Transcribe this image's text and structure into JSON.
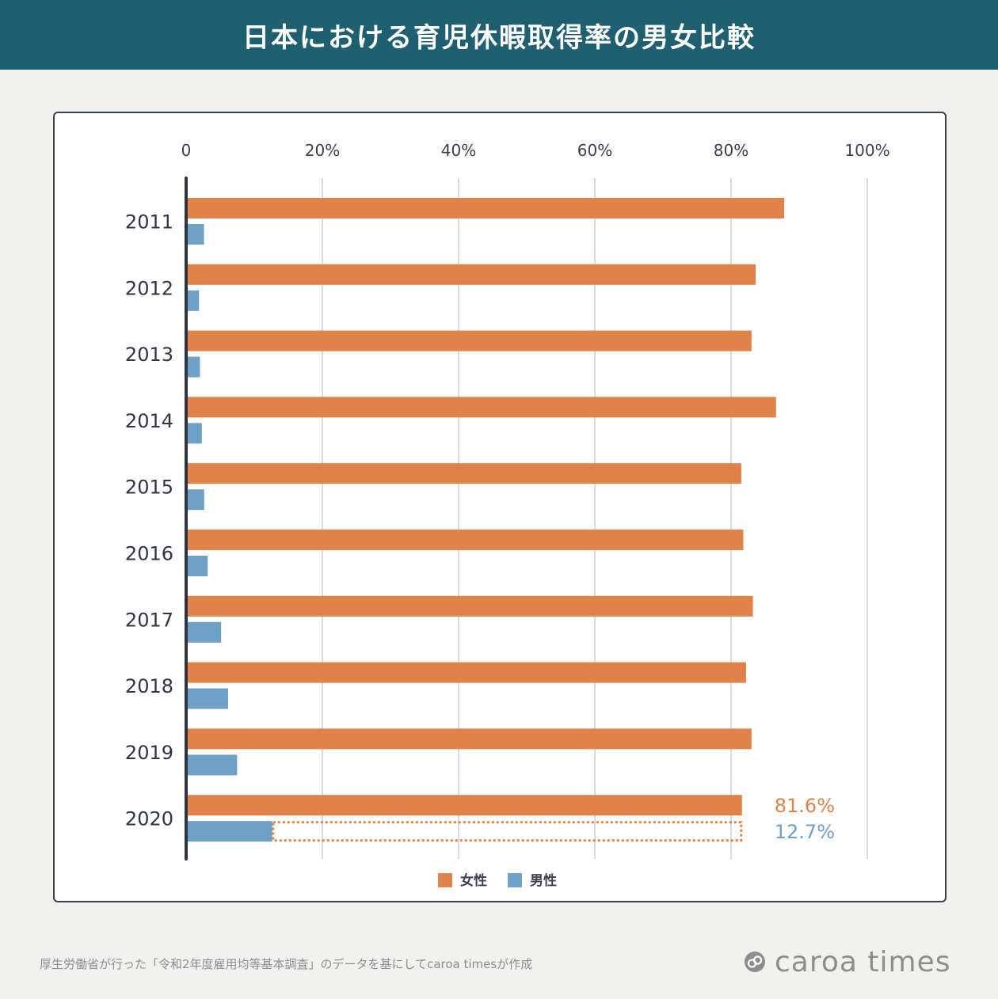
{
  "title": "日本における育児休暇取得率の男女比較",
  "footer": {
    "source_note": "厚生労働省が行った「令和2年度雇用均等基本調査」のデータを基にしてcaroa timesが作成",
    "brand": "caroa times"
  },
  "colors": {
    "header_bg": "#1f6070",
    "female": "#e0834a",
    "male": "#6fa0c6",
    "axis": "#2e3444",
    "grid": "#d9d9e3"
  },
  "chart_data": {
    "type": "bar",
    "orientation": "horizontal",
    "title": "日本における育児休暇取得率の男女比較",
    "categories": [
      "2011",
      "2012",
      "2013",
      "2014",
      "2015",
      "2016",
      "2017",
      "2018",
      "2019",
      "2020"
    ],
    "series": [
      {
        "name": "女性",
        "color": "#e0834a",
        "values": [
          87.8,
          83.6,
          83.0,
          86.6,
          81.5,
          81.8,
          83.2,
          82.2,
          83.0,
          81.6
        ]
      },
      {
        "name": "男性",
        "color": "#6fa0c6",
        "values": [
          2.63,
          1.89,
          2.03,
          2.3,
          2.65,
          3.16,
          5.14,
          6.16,
          7.48,
          12.65
        ]
      }
    ],
    "x_ticks": [
      "0",
      "20%",
      "40%",
      "60%",
      "80%",
      "100%"
    ],
    "xlim": [
      0,
      100
    ],
    "grid": true,
    "legend": [
      "女性",
      "男性"
    ],
    "legend_position": "bottom",
    "annotations": {
      "female_latest": "81.6%",
      "male_latest": "12.7%"
    }
  }
}
